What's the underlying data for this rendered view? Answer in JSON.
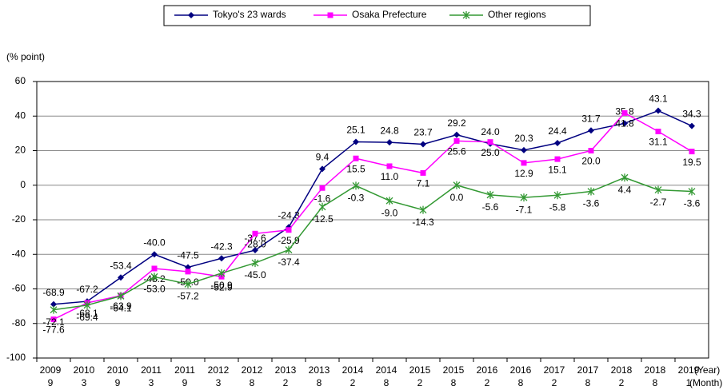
{
  "chart_data": {
    "type": "line",
    "y_axis_label": "(% point)",
    "x_axis_year_label": "(Year)",
    "x_axis_month_label": "(Month)",
    "categories": [
      "2009",
      "2010",
      "2010",
      "2011",
      "2011",
      "2012",
      "2012",
      "2013",
      "2013",
      "2014",
      "2014",
      "2015",
      "2015",
      "2016",
      "2016",
      "2017",
      "2017",
      "2018",
      "2018",
      "2019"
    ],
    "category_months": [
      "9",
      "3",
      "9",
      "3",
      "9",
      "3",
      "8",
      "2",
      "8",
      "2",
      "8",
      "2",
      "8",
      "2",
      "8",
      "2",
      "8",
      "2",
      "8",
      "1"
    ],
    "series": [
      {
        "name": "Tokyo's 23 wards",
        "color": "#000080",
        "marker": "diamond",
        "values": [
          -68.9,
          -67.2,
          -53.4,
          -40.0,
          -47.5,
          -42.3,
          -37.6,
          -24.3,
          9.4,
          25.1,
          24.8,
          23.7,
          29.2,
          24.0,
          20.3,
          24.4,
          31.7,
          35.8,
          43.1,
          34.3
        ],
        "value_labels": [
          "-68.9",
          "-67.2",
          "-53.4",
          "-40.0",
          "-47.5",
          "-42.3",
          "-37.6",
          "-24.3",
          "9.4",
          "25.1",
          "24.8",
          "23.7",
          "29.2",
          "24.0",
          "20.3",
          "24.4",
          "31.7",
          "35.8",
          "43.1",
          "34.3"
        ]
      },
      {
        "name": "Osaka Prefecture",
        "color": "#ff00ff",
        "marker": "square",
        "values": [
          -77.6,
          -68.1,
          -63.9,
          -48.2,
          -50.0,
          -52.9,
          -28.0,
          -25.9,
          -1.6,
          15.5,
          11.0,
          7.1,
          25.6,
          25.0,
          12.9,
          15.1,
          20.0,
          41.8,
          31.1,
          19.5
        ],
        "value_labels": [
          "-77.6",
          "-68.1",
          "-63.9",
          "-48.2",
          "-50.0",
          "-52.9",
          "-28.0",
          "-25.9",
          "-1.6",
          "15.5",
          "11.0",
          "7.1",
          "25.6",
          "25.0",
          "12.9",
          "15.1",
          "20.0",
          "41.8",
          "31.1",
          "19.5"
        ]
      },
      {
        "name": "Other regions",
        "color": "#339933",
        "marker": "asterisk",
        "values": [
          -72.1,
          -69.4,
          -64.1,
          -53.0,
          -57.2,
          -50.9,
          -45.0,
          -37.4,
          -12.5,
          -0.3,
          -9.0,
          -14.3,
          0.0,
          -5.6,
          -7.1,
          -5.8,
          -3.6,
          4.4,
          -2.7,
          -3.6
        ],
        "value_labels": [
          "-72.1",
          "-69.4",
          "-64.1",
          "-53.0",
          "-57.2",
          "-50.9",
          "-45.0",
          "-37.4",
          "-12.5",
          "-0.3",
          "-9.0",
          "-14.3",
          "0.0",
          "-5.6",
          "-7.1",
          "-5.8",
          "-3.6",
          "4.4",
          "-2.7",
          "-3.6"
        ]
      }
    ],
    "ylim": [
      -100,
      60
    ],
    "yticks": [
      -100,
      -80,
      -60,
      -40,
      -20,
      0,
      20,
      40,
      60
    ],
    "grid": true,
    "legend": "top",
    "label_color": "#000000",
    "negative_label_color": "#e8262b"
  }
}
